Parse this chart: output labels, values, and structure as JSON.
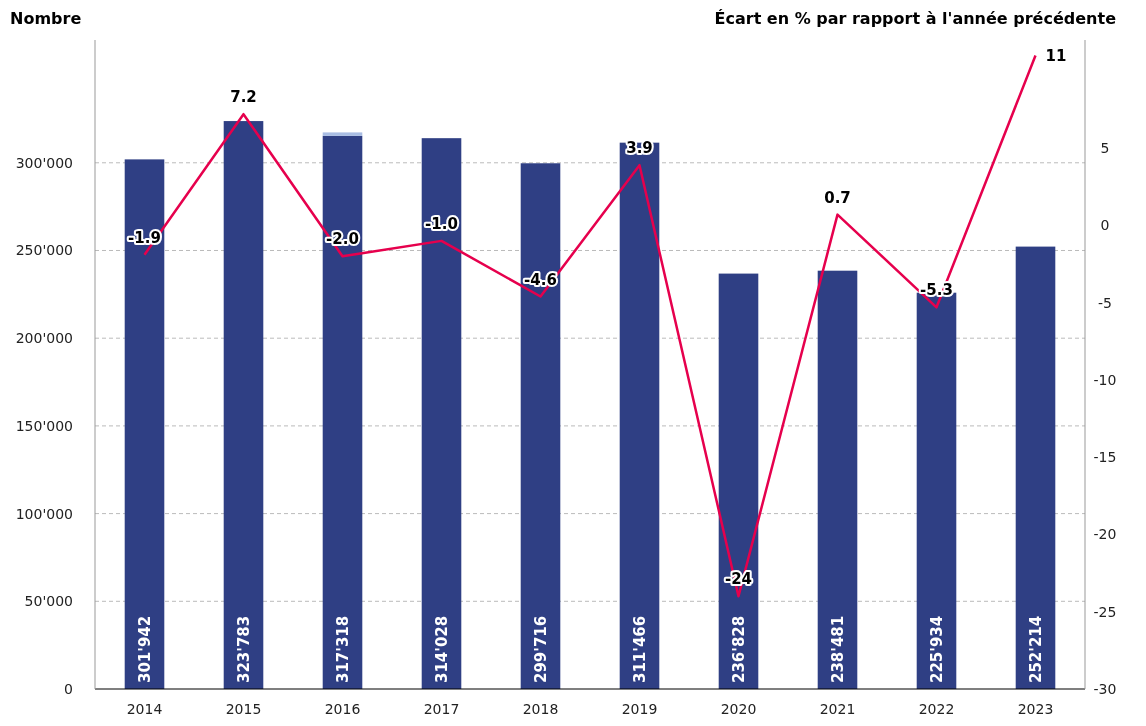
{
  "chart_data": {
    "type": "bar",
    "stacked": true,
    "ylabel": "Nombre",
    "y2label": "Écart en % par rapport à l'année précédente",
    "categories": [
      "2014",
      "2015",
      "2016",
      "2017",
      "2018",
      "2019",
      "2020",
      "2021",
      "2022",
      "2023"
    ],
    "series": [
      {
        "color": "#2f3f84",
        "values": [
          301942,
          323783,
          315318,
          314028,
          299716,
          311466,
          236828,
          238481,
          225934,
          252214
        ]
      },
      {
        "color": "#a9bde3",
        "values": [
          0,
          0,
          2000,
          0,
          0,
          0,
          0,
          0,
          0,
          0
        ]
      },
      {
        "type": "line",
        "axis": "y2",
        "color": "#e6004d",
        "values": [
          -1.9,
          7.2,
          -2.0,
          -1.0,
          -4.6,
          3.9,
          -24,
          0.7,
          -5.3,
          11
        ],
        "value_labels": [
          "-1.9",
          "7.2",
          "-2.0",
          "-1.0",
          "-4.6",
          "3.9",
          "-24",
          "0.7",
          "-5.3",
          "11"
        ]
      }
    ],
    "totals": [
      "301'942",
      "323'783",
      "317'318",
      "314'028",
      "299'716",
      "311'466",
      "236'828",
      "238'481",
      "225'934",
      "252'214"
    ],
    "ylim": [
      0,
      370000
    ],
    "yticks": [
      {
        "value": 0,
        "label": "0"
      },
      {
        "value": 50000,
        "label": "50'000"
      },
      {
        "value": 100000,
        "label": "100'000"
      },
      {
        "value": 150000,
        "label": "150'000"
      },
      {
        "value": 200000,
        "label": "200'000"
      },
      {
        "value": 250000,
        "label": "250'000"
      },
      {
        "value": 300000,
        "label": "300'000"
      }
    ],
    "y2lim": [
      -30,
      12
    ],
    "y2ticks": [
      -30,
      -25,
      -20,
      -15,
      -10,
      -5,
      0,
      5
    ],
    "grid": "y",
    "marker": "none",
    "line_style": "solid"
  }
}
